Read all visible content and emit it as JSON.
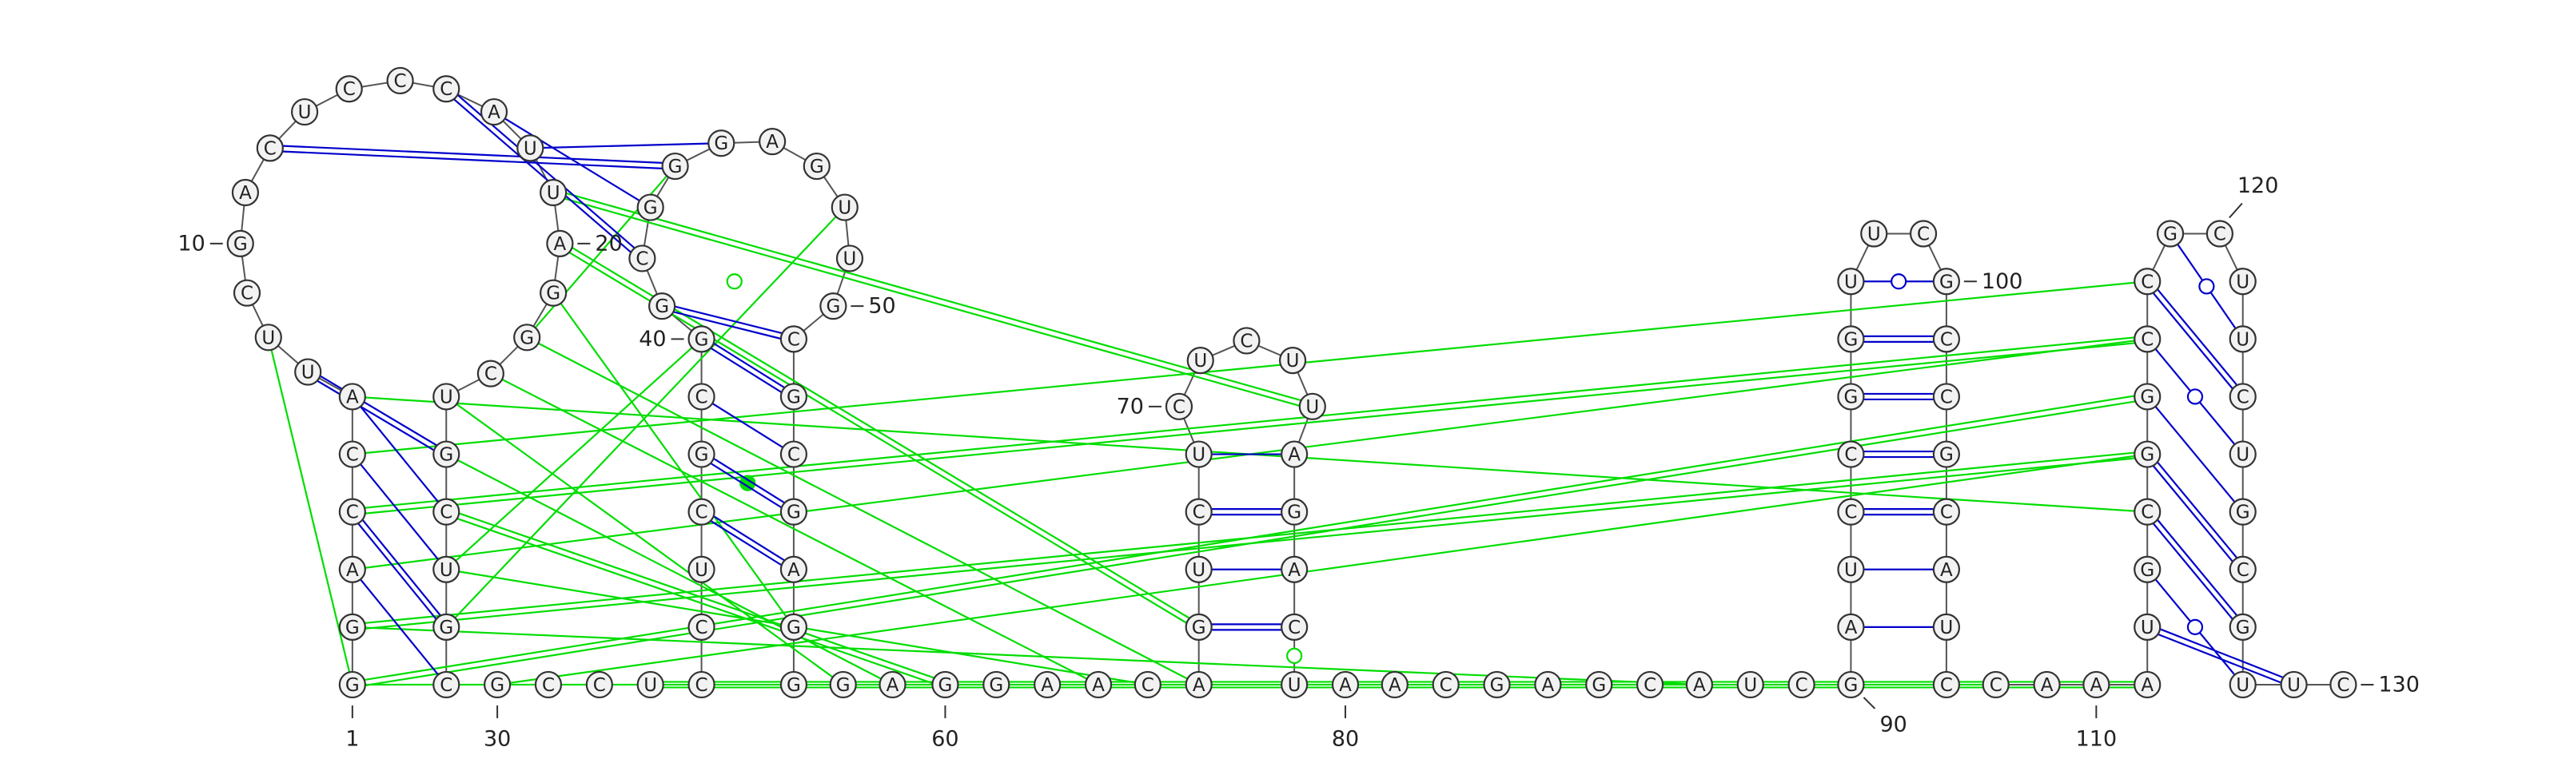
{
  "colors": {
    "secondary_pairs": "#0000cc",
    "tertiary_pairs": "#00dd00",
    "nucleotide_fill": "#f2f2f2",
    "nucleotide_stroke": "#333333"
  },
  "nucleotides": [
    {
      "i": 1,
      "b": "G"
    },
    {
      "i": 2,
      "b": "G"
    },
    {
      "i": 3,
      "b": "A"
    },
    {
      "i": 4,
      "b": "C"
    },
    {
      "i": 5,
      "b": "C"
    },
    {
      "i": 6,
      "b": "A"
    },
    {
      "i": 7,
      "b": "U"
    },
    {
      "i": 8,
      "b": "U"
    },
    {
      "i": 9,
      "b": "C"
    },
    {
      "i": 10,
      "b": "G"
    },
    {
      "i": 11,
      "b": "A"
    },
    {
      "i": 12,
      "b": "C"
    },
    {
      "i": 13,
      "b": "U"
    },
    {
      "i": 14,
      "b": "C"
    },
    {
      "i": 15,
      "b": "C"
    },
    {
      "i": 16,
      "b": "C"
    },
    {
      "i": 17,
      "b": "A"
    },
    {
      "i": 18,
      "b": "U"
    },
    {
      "i": 19,
      "b": "U"
    },
    {
      "i": 20,
      "b": "A"
    },
    {
      "i": 21,
      "b": "G"
    },
    {
      "i": 22,
      "b": "G"
    },
    {
      "i": 23,
      "b": "C"
    },
    {
      "i": 24,
      "b": "U"
    },
    {
      "i": 25,
      "b": "G"
    },
    {
      "i": 26,
      "b": "C"
    },
    {
      "i": 27,
      "b": "U"
    },
    {
      "i": 28,
      "b": "G"
    },
    {
      "i": 29,
      "b": "C"
    },
    {
      "i": 30,
      "b": "G"
    },
    {
      "i": 31,
      "b": "C"
    },
    {
      "i": 32,
      "b": "C"
    },
    {
      "i": 33,
      "b": "U"
    },
    {
      "i": 34,
      "b": "C"
    },
    {
      "i": 35,
      "b": "C"
    },
    {
      "i": 36,
      "b": "U"
    },
    {
      "i": 37,
      "b": "C"
    },
    {
      "i": 38,
      "b": "G"
    },
    {
      "i": 39,
      "b": "C"
    },
    {
      "i": 40,
      "b": "G"
    },
    {
      "i": 41,
      "b": "G"
    },
    {
      "i": 42,
      "b": "C"
    },
    {
      "i": 43,
      "b": "G"
    },
    {
      "i": 44,
      "b": "G"
    },
    {
      "i": 45,
      "b": "G"
    },
    {
      "i": 46,
      "b": "A"
    },
    {
      "i": 47,
      "b": "G"
    },
    {
      "i": 48,
      "b": "U"
    },
    {
      "i": 49,
      "b": "U"
    },
    {
      "i": 50,
      "b": "G"
    },
    {
      "i": 51,
      "b": "C"
    },
    {
      "i": 52,
      "b": "G"
    },
    {
      "i": 53,
      "b": "C"
    },
    {
      "i": 54,
      "b": "G"
    },
    {
      "i": 55,
      "b": "A"
    },
    {
      "i": 56,
      "b": "G"
    },
    {
      "i": 57,
      "b": "G"
    },
    {
      "i": 58,
      "b": "G"
    },
    {
      "i": 59,
      "b": "A"
    },
    {
      "i": 60,
      "b": "G"
    },
    {
      "i": 61,
      "b": "G"
    },
    {
      "i": 62,
      "b": "A"
    },
    {
      "i": 63,
      "b": "A"
    },
    {
      "i": 64,
      "b": "C"
    },
    {
      "i": 65,
      "b": "A"
    },
    {
      "i": 66,
      "b": "G"
    },
    {
      "i": 67,
      "b": "U"
    },
    {
      "i": 68,
      "b": "C"
    },
    {
      "i": 69,
      "b": "U"
    },
    {
      "i": 70,
      "b": "C"
    },
    {
      "i": 71,
      "b": "U"
    },
    {
      "i": 72,
      "b": "C"
    },
    {
      "i": 73,
      "b": "U"
    },
    {
      "i": 74,
      "b": "U"
    },
    {
      "i": 75,
      "b": "A"
    },
    {
      "i": 76,
      "b": "G"
    },
    {
      "i": 77,
      "b": "A"
    },
    {
      "i": 78,
      "b": "C"
    },
    {
      "i": 79,
      "b": "U"
    },
    {
      "i": 80,
      "b": "A"
    },
    {
      "i": 81,
      "b": "A"
    },
    {
      "i": 82,
      "b": "C"
    },
    {
      "i": 83,
      "b": "G"
    },
    {
      "i": 84,
      "b": "A"
    },
    {
      "i": 85,
      "b": "G"
    },
    {
      "i": 86,
      "b": "C"
    },
    {
      "i": 87,
      "b": "A"
    },
    {
      "i": 88,
      "b": "U"
    },
    {
      "i": 89,
      "b": "C"
    },
    {
      "i": 90,
      "b": "G"
    },
    {
      "i": 91,
      "b": "A"
    },
    {
      "i": 92,
      "b": "U"
    },
    {
      "i": 93,
      "b": "C"
    },
    {
      "i": 94,
      "b": "C"
    },
    {
      "i": 95,
      "b": "G"
    },
    {
      "i": 96,
      "b": "G"
    },
    {
      "i": 97,
      "b": "U"
    },
    {
      "i": 98,
      "b": "U"
    },
    {
      "i": 99,
      "b": "C"
    },
    {
      "i": 100,
      "b": "G"
    },
    {
      "i": 101,
      "b": "C"
    },
    {
      "i": 102,
      "b": "C"
    },
    {
      "i": 103,
      "b": "G"
    },
    {
      "i": 104,
      "b": "C"
    },
    {
      "i": 105,
      "b": "A"
    },
    {
      "i": 106,
      "b": "U"
    },
    {
      "i": 107,
      "b": "C"
    },
    {
      "i": 108,
      "b": "C"
    },
    {
      "i": 109,
      "b": "A"
    },
    {
      "i": 110,
      "b": "A"
    },
    {
      "i": 111,
      "b": "A"
    },
    {
      "i": 112,
      "b": "U"
    },
    {
      "i": 113,
      "b": "G"
    },
    {
      "i": 114,
      "b": "C"
    },
    {
      "i": 115,
      "b": "G"
    },
    {
      "i": 116,
      "b": "G"
    },
    {
      "i": 117,
      "b": "C"
    },
    {
      "i": 118,
      "b": "C"
    },
    {
      "i": 119,
      "b": "G"
    },
    {
      "i": 120,
      "b": "C"
    },
    {
      "i": 121,
      "b": "U"
    },
    {
      "i": 122,
      "b": "U"
    },
    {
      "i": 123,
      "b": "C"
    },
    {
      "i": 124,
      "b": "U"
    },
    {
      "i": 125,
      "b": "G"
    },
    {
      "i": 126,
      "b": "C"
    },
    {
      "i": 127,
      "b": "G"
    },
    {
      "i": 128,
      "b": "U"
    },
    {
      "i": 129,
      "b": "U"
    },
    {
      "i": 130,
      "b": "C"
    }
  ],
  "secondary_pairs": [
    {
      "a": 3,
      "b": 29,
      "type": "single"
    },
    {
      "a": 4,
      "b": 28,
      "type": "double"
    },
    {
      "a": 5,
      "b": 27,
      "type": "single"
    },
    {
      "a": 6,
      "b": 26,
      "type": "single"
    },
    {
      "a": 7,
      "b": 25,
      "type": "double"
    },
    {
      "a": 37,
      "b": 55,
      "type": "double"
    },
    {
      "a": 38,
      "b": 54,
      "type": "double"
    },
    {
      "a": 39,
      "b": 53,
      "type": "single"
    },
    {
      "a": 40,
      "b": 52,
      "type": "double"
    },
    {
      "a": 41,
      "b": 51,
      "type": "double"
    },
    {
      "a": 12,
      "b": 44,
      "type": "double"
    },
    {
      "a": 16,
      "b": 42,
      "type": "double"
    },
    {
      "a": 17,
      "b": 43,
      "type": "single"
    },
    {
      "a": 18,
      "b": 45,
      "type": "single"
    },
    {
      "a": 66,
      "b": 78,
      "type": "double"
    },
    {
      "a": 67,
      "b": 77,
      "type": "single"
    },
    {
      "a": 68,
      "b": 76,
      "type": "double"
    },
    {
      "a": 69,
      "b": 75,
      "type": "single"
    },
    {
      "a": 91,
      "b": 106,
      "type": "single"
    },
    {
      "a": 92,
      "b": 105,
      "type": "single"
    },
    {
      "a": 93,
      "b": 104,
      "type": "double"
    },
    {
      "a": 94,
      "b": 103,
      "type": "double"
    },
    {
      "a": 95,
      "b": 102,
      "type": "double"
    },
    {
      "a": 96,
      "b": 101,
      "type": "double"
    },
    {
      "a": 97,
      "b": 100,
      "type": "wobble"
    },
    {
      "a": 112,
      "b": 129,
      "type": "double"
    },
    {
      "a": 113,
      "b": 128,
      "type": "wobble"
    },
    {
      "a": 114,
      "b": 127,
      "type": "double"
    },
    {
      "a": 115,
      "b": 126,
      "type": "double"
    },
    {
      "a": 116,
      "b": 125,
      "type": "single"
    },
    {
      "a": 117,
      "b": 124,
      "type": "wobble"
    },
    {
      "a": 118,
      "b": 123,
      "type": "double"
    },
    {
      "a": 119,
      "b": 122,
      "type": "wobble"
    }
  ],
  "tertiary_pairs": [
    {
      "a": 8,
      "b": 1,
      "type": "single"
    },
    {
      "a": 4,
      "b": 117,
      "type": "double"
    },
    {
      "a": 5,
      "b": 118,
      "type": "single"
    },
    {
      "a": 2,
      "b": 115,
      "type": "double"
    },
    {
      "a": 1,
      "b": 116,
      "type": "double"
    },
    {
      "a": 2,
      "b": 87,
      "type": "single"
    },
    {
      "a": 26,
      "b": 60,
      "type": "double"
    },
    {
      "a": 25,
      "b": 59,
      "type": "single"
    },
    {
      "a": 24,
      "b": 58,
      "type": "single"
    },
    {
      "a": 23,
      "b": 63,
      "type": "single"
    },
    {
      "a": 22,
      "b": 65,
      "type": "single"
    },
    {
      "a": 21,
      "b": 56,
      "type": "single"
    },
    {
      "a": 6,
      "b": 114,
      "type": "single"
    },
    {
      "a": 3,
      "b": 117,
      "type": "single"
    },
    {
      "a": 20,
      "b": 66,
      "type": "double"
    },
    {
      "a": 19,
      "b": 74,
      "type": "double"
    },
    {
      "a": 1,
      "b": 108,
      "type": "single"
    },
    {
      "a": 27,
      "b": 64,
      "type": "single"
    },
    {
      "a": 28,
      "b": 48,
      "type": "single"
    },
    {
      "a": 33,
      "b": 111,
      "type": "double"
    },
    {
      "a": 30,
      "b": 115,
      "type": "single"
    },
    {
      "a": 22,
      "b": 44,
      "type": "single"
    },
    {
      "a": 27,
      "b": 40,
      "type": "single"
    }
  ],
  "tertiary_markers": [
    {
      "between": [
        44,
        52
      ],
      "kind": "open"
    },
    {
      "between": [
        38,
        54
      ],
      "kind": "filled"
    },
    {
      "between": [
        78,
        79
      ],
      "kind": "open"
    }
  ],
  "position_labels": [
    {
      "at": 1,
      "text": "1",
      "side": "below"
    },
    {
      "at": 10,
      "text": "10",
      "side": "left"
    },
    {
      "at": 20,
      "text": "20",
      "side": "right"
    },
    {
      "at": 30,
      "text": "30",
      "side": "below"
    },
    {
      "at": 40,
      "text": "40",
      "side": "left"
    },
    {
      "at": 50,
      "text": "50",
      "side": "right"
    },
    {
      "at": 60,
      "text": "60",
      "side": "below"
    },
    {
      "at": 70,
      "text": "70",
      "side": "left"
    },
    {
      "at": 80,
      "text": "80",
      "side": "below"
    },
    {
      "at": 90,
      "text": "90",
      "side": "below-right"
    },
    {
      "at": 100,
      "text": "100",
      "side": "right"
    },
    {
      "at": 110,
      "text": "110",
      "side": "below"
    },
    {
      "at": 120,
      "text": "120",
      "side": "above-right"
    },
    {
      "at": 130,
      "text": "130",
      "side": "right"
    }
  ]
}
